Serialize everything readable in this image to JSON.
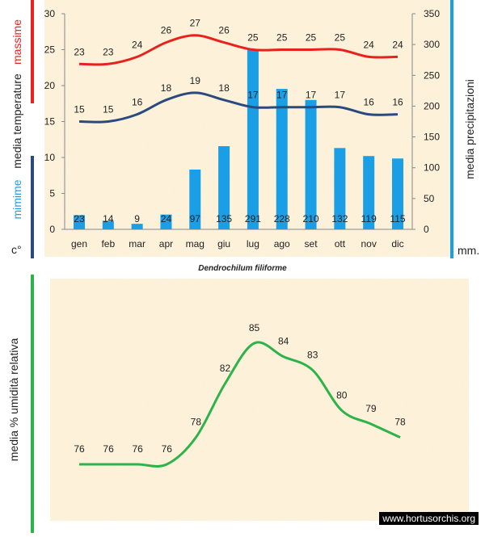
{
  "chart_data": [
    {
      "type": "bar",
      "title": "Dendrochilum filiforme",
      "categories": [
        "gen",
        "feb",
        "mar",
        "apr",
        "mag",
        "giu",
        "lug",
        "ago",
        "set",
        "ott",
        "nov",
        "dic"
      ],
      "precipitation": {
        "values": [
          23,
          14,
          9,
          24,
          97,
          135,
          291,
          228,
          210,
          132,
          119,
          115
        ],
        "ylim": [
          0,
          350
        ],
        "ticks": [
          0,
          50,
          100,
          150,
          200,
          250,
          300,
          350
        ],
        "ylabel": "media  precipitazioni",
        "unit": "mm."
      },
      "temperature": {
        "ylim": [
          0,
          30
        ],
        "ticks": [
          0,
          5,
          10,
          15,
          20,
          25,
          30
        ],
        "unit": "c°",
        "label_media": "media  temperature",
        "series": [
          {
            "name": "massime",
            "values": [
              23,
              23,
              24,
              26,
              27,
              26,
              25,
              25,
              25,
              25,
              24,
              24
            ],
            "color": "#e8211d"
          },
          {
            "name": "mimime",
            "values": [
              15,
              15,
              16,
              18,
              19,
              18,
              17,
              17,
              17,
              17,
              16,
              16
            ],
            "color": "#2a4a7f"
          }
        ]
      },
      "bar_color": "#1a9fe6"
    },
    {
      "type": "line",
      "categories": [
        "gen",
        "feb",
        "mar",
        "apr",
        "mag",
        "giu",
        "lug",
        "ago",
        "set",
        "ott",
        "nov",
        "dic"
      ],
      "series": [
        {
          "name": "media % umidità relativa",
          "values": [
            76,
            76,
            76,
            76,
            78,
            82,
            85,
            84,
            83,
            80,
            79,
            78
          ],
          "color": "#2db34a"
        }
      ],
      "ylabel": "media %  umidità relativa",
      "ylim": [
        74,
        87
      ]
    }
  ],
  "watermark": "www.hortusorchis.org",
  "colors": {
    "panel": "#fdf1d9",
    "max_bar": "#e8211d",
    "min_bar": "#2a4a7f",
    "precip_bar": "#1a9fe6",
    "humidity_bar": "#2db34a"
  }
}
